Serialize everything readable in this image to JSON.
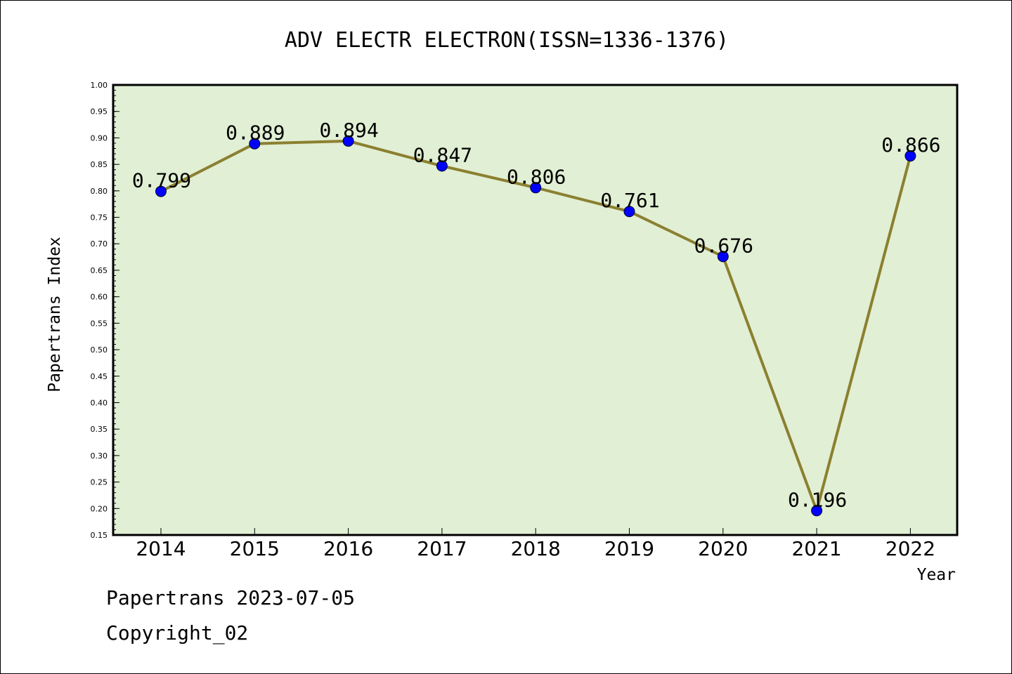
{
  "chart_data": {
    "type": "line",
    "title": "ADV ELECTR ELECTRON(ISSN=1336-1376)",
    "xlabel": "Year",
    "ylabel": "Papertrans Index",
    "categories": [
      "2014",
      "2015",
      "2016",
      "2017",
      "2018",
      "2019",
      "2020",
      "2021",
      "2022"
    ],
    "values": [
      0.799,
      0.889,
      0.894,
      0.847,
      0.806,
      0.761,
      0.676,
      0.196,
      0.866
    ],
    "data_labels": [
      "0.799",
      "0.889",
      "0.894",
      "0.847",
      "0.806",
      "0.761",
      "0.676",
      "0.196",
      "0.866"
    ],
    "ylim": [
      0.15,
      1.0
    ],
    "yticks": [
      "0.15",
      "0.20",
      "0.25",
      "0.30",
      "0.35",
      "0.40",
      "0.45",
      "0.50",
      "0.55",
      "0.60",
      "0.65",
      "0.70",
      "0.75",
      "0.80",
      "0.85",
      "0.90",
      "0.95",
      "1.00"
    ],
    "grid": false,
    "colors": {
      "plot_background": "#e1efd4",
      "line": "#8b8030",
      "marker": "#0000ff"
    }
  },
  "footer": {
    "line1": "Papertrans 2023-07-05",
    "line2": "Copyright_02"
  }
}
